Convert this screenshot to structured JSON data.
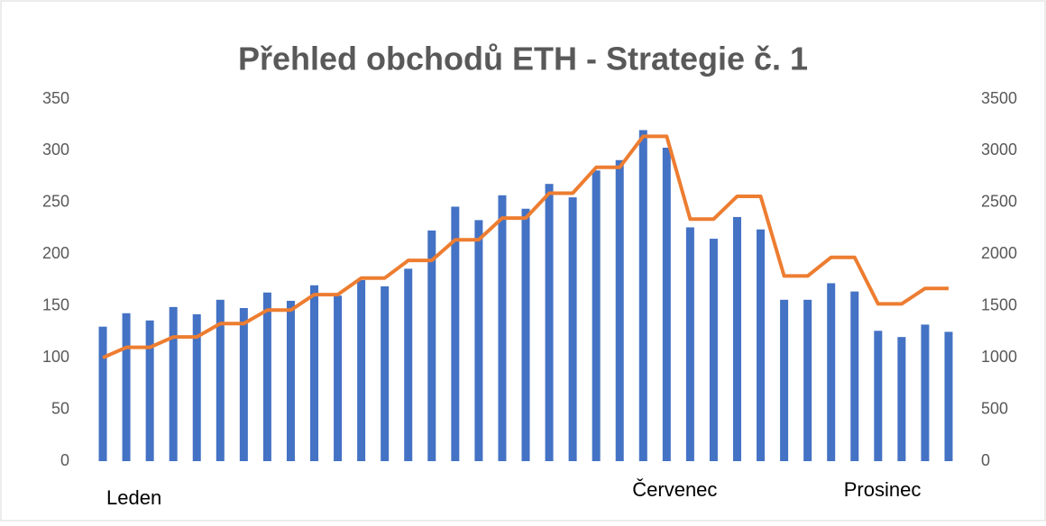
{
  "chart_data": {
    "type": "bar_line",
    "title": "Přehled obchodů ETH - Strategie č. 1",
    "categories": [
      "Leden",
      null,
      null,
      null,
      null,
      null,
      null,
      null,
      null,
      null,
      null,
      null,
      null,
      null,
      null,
      null,
      null,
      null,
      null,
      null,
      null,
      null,
      null,
      "Červenec",
      null,
      null,
      null,
      null,
      null,
      null,
      null,
      null,
      "Prosinec",
      null,
      null,
      null,
      null
    ],
    "series": [
      {
        "color": "#4472c4",
        "axis": "y",
        "values": [
          130,
          143,
          136,
          149,
          142,
          156,
          148,
          163,
          155,
          170,
          160,
          175,
          169,
          186,
          223,
          246,
          233,
          257,
          244,
          268,
          255,
          281,
          291,
          320,
          303,
          226,
          215,
          236,
          224,
          156,
          156,
          172,
          164,
          126,
          120,
          132,
          125
        ]
      },
      {
        "color": "#ed7d31",
        "axis": "y2",
        "values": [
          1000,
          1100,
          1100,
          1200,
          1200,
          1330,
          1330,
          1460,
          1460,
          1610,
          1610,
          1770,
          1770,
          1940,
          1940,
          2140,
          2140,
          2350,
          2350,
          2590,
          2590,
          2840,
          2840,
          3140,
          3140,
          2340,
          2340,
          2560,
          2560,
          1790,
          1790,
          1970,
          1970,
          1520,
          1520,
          1670,
          1670
        ]
      }
    ],
    "ylim": [
      0,
      350
    ],
    "yticks": [
      0,
      50,
      100,
      150,
      200,
      250,
      300,
      350
    ],
    "y2lim": [
      0,
      3500
    ],
    "y2ticks": [
      0,
      500,
      1000,
      1500,
      2000,
      2500,
      3000,
      3500
    ]
  }
}
